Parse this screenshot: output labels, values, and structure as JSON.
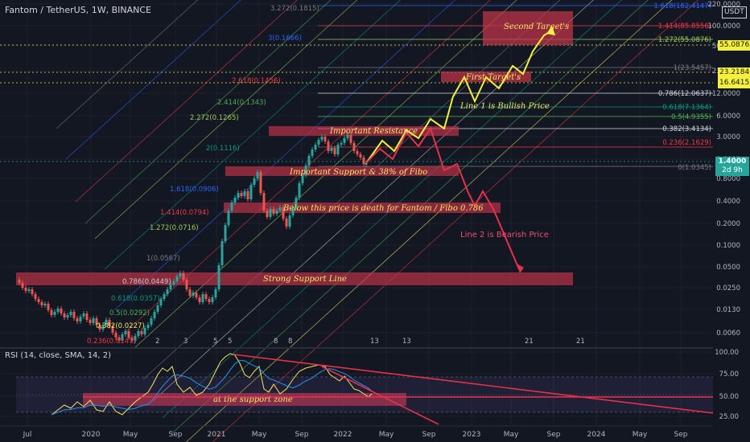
{
  "header": {
    "title": "Fantom / TetherUS, 1W, BINANCE"
  },
  "rsi_header": {
    "title": "RSI (14, close, SMA, 14, 2)"
  },
  "currency_label": "USDT",
  "price_axis": [
    "220.0000",
    "100.0000",
    "50.0000",
    "23.0000",
    "12.0000",
    "6.0000",
    "3.0000",
    "1.6000",
    "0.8000",
    "0.4000",
    "0.2000",
    "0.1000",
    "0.0500",
    "0.0250",
    "0.0130",
    "0.0060"
  ],
  "rsi_axis": [
    "100.00",
    "75.00",
    "50.00",
    "25.00"
  ],
  "x_axis": [
    "Jul",
    "2020",
    "May",
    "Sep",
    "2021",
    "May",
    "Sep",
    "2022",
    "May",
    "Sep",
    "2023",
    "May",
    "Sep",
    "2024",
    "May",
    "Sep"
  ],
  "badges": {
    "current_price": "1.4000",
    "current_time": "2d 9h",
    "target_2": "55.0876",
    "target_1a": "23.2184",
    "target_1b": "16.6415"
  },
  "fib_left": [
    {
      "label": "3.272(0.1815)",
      "color": "#787b86"
    },
    {
      "label": "3(0.1666)",
      "color": "#2962ff"
    },
    {
      "label": "2.618(0.1456)",
      "color": "#f23645"
    },
    {
      "label": "2.414(0.1343)",
      "color": "#4caf50"
    },
    {
      "label": "2.272(0.1265)",
      "color": "#9bcd5a"
    },
    {
      "label": "2(0.1116)",
      "color": "#089981"
    },
    {
      "label": "1.618(0.0906)",
      "color": "#2962ff"
    },
    {
      "label": "1.414(0.0794)",
      "color": "#f23645"
    },
    {
      "label": "1.272(0.0716)",
      "color": "#9bcd5a"
    },
    {
      "label": "1(0.0567)",
      "color": "#787b86"
    },
    {
      "label": "0.786(0.0449)",
      "color": "#c8c8c8"
    },
    {
      "label": "0.618(0.0357)",
      "color": "#089981"
    },
    {
      "label": "0.5(0.0292)",
      "color": "#4caf50"
    },
    {
      "label": "0.382(0.0227)",
      "color": "#f5e663"
    },
    {
      "label": "0.236(0.0147)",
      "color": "#f23645"
    }
  ],
  "fib_right": [
    {
      "label": "1.618(162.4147)",
      "color": "#2962ff"
    },
    {
      "label": "1.414(85.8556)",
      "color": "#f23645"
    },
    {
      "label": "1.272(55.0876)",
      "color": "#9bcd5a"
    },
    {
      "label": "1(23.5457)",
      "color": "#787b86"
    },
    {
      "label": "0.786(12.0637)",
      "color": "#d1d4dc"
    },
    {
      "label": "0.618(7.1364)",
      "color": "#089981"
    },
    {
      "label": "0.5(4.9355)",
      "color": "#4caf50"
    },
    {
      "label": "0.382(3.4134)",
      "color": "#d1d4dc"
    },
    {
      "label": "0.236(2.1629)",
      "color": "#f23645"
    },
    {
      "label": "0(1.0345)",
      "color": "#787b86"
    }
  ],
  "annotations": {
    "second_target": "Second Target's",
    "first_target": "First Target's",
    "bullish": "Line 1 is Bullish Price",
    "resistance": "Important Resistance",
    "support": "Important Support & 38% of Fibo",
    "death": "Below this price is death for Fantom / Fibo 0.786",
    "bearish": "Line 2 is Bearish Price",
    "strong_support": "Strong Support Line",
    "rsi_support": "at the support zone"
  },
  "bar_numbers": [
    "2",
    "3",
    "5",
    "5",
    "8",
    "8",
    "13",
    "13",
    "21",
    "21"
  ],
  "colors": {
    "background": "#131722",
    "zone": "#c8344a",
    "bullish": "#f5f03c",
    "bearish": "#e8304a",
    "up": "#26a69a",
    "down": "#ef5350"
  }
}
